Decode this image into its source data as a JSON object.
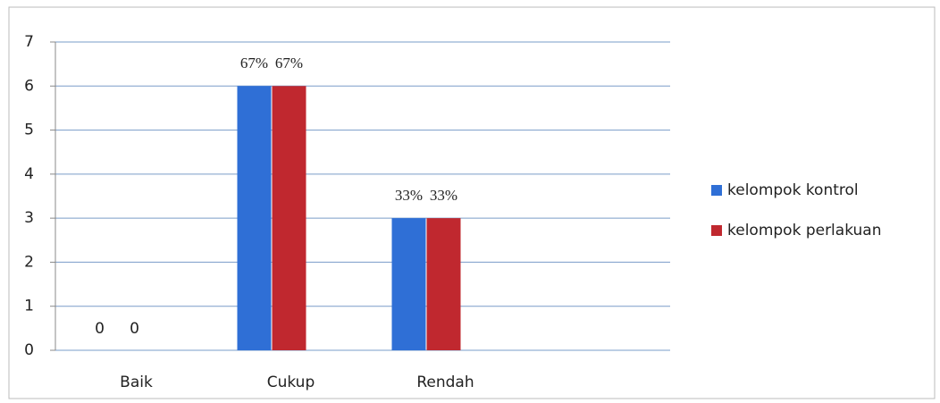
{
  "chart_data": {
    "type": "bar",
    "categories": [
      "Baik",
      "Cukup",
      "Rendah",
      null
    ],
    "series": [
      {
        "name": "kelompok kontrol",
        "color": "#2f6fd6",
        "values": [
          0,
          6,
          3,
          null
        ],
        "value_labels": [
          "0",
          "67%",
          "33%",
          null
        ]
      },
      {
        "name": "kelompok perlakuan",
        "color": "#c0282f",
        "values": [
          0,
          6,
          3,
          null
        ],
        "value_labels": [
          "0",
          "67%",
          "33%",
          null
        ]
      }
    ],
    "ylim": [
      0,
      7
    ],
    "yticks": [
      0,
      1,
      2,
      3,
      4,
      5,
      6,
      7
    ],
    "grid": true,
    "legend": "right"
  }
}
